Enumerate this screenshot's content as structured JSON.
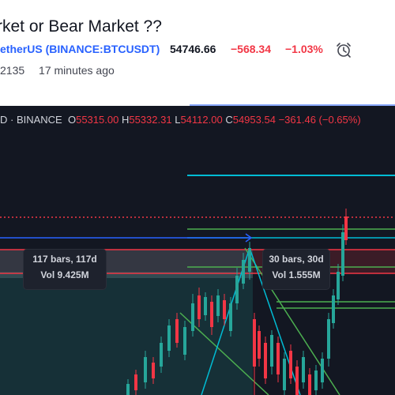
{
  "idea": {
    "title": "rket or Bear Market ??",
    "author": "etherUS",
    "symbol": "BINANCE:BTCUSDT",
    "price": "54746.66",
    "change": "−568.34",
    "change_pct": "−1.03%",
    "views": "2135",
    "time_ago": "17 minutes ago"
  },
  "ohlc": {
    "prefix": "D · BINANCE",
    "o_label": "O",
    "o": "55315.00",
    "h_label": "H",
    "h": "55332.31",
    "l_label": "L",
    "l": "54112.00",
    "c_label": "C",
    "c": "54953.54",
    "change": "−361.46 (−0.65%)"
  },
  "measurements": [
    {
      "bars": "117 bars, 117d",
      "vol": "Vol 9.425M"
    },
    {
      "bars": "30 bars, 30d",
      "vol": "Vol 1.555M"
    }
  ],
  "colors": {
    "up": "#26a69a",
    "down": "#f23645",
    "accent": "#2962ff",
    "cyan": "#00bcd4",
    "green_line": "#4caf50",
    "bg": "#131722"
  }
}
